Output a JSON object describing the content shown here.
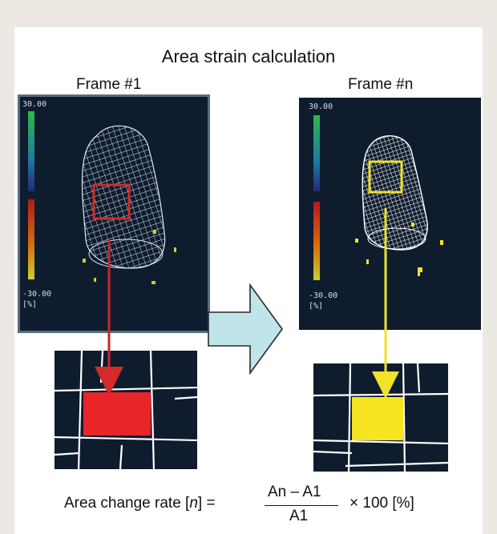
{
  "figure": {
    "title": "Area strain calculation",
    "frame_left_label": "Frame #1",
    "frame_right_label": "Frame #n",
    "scale": {
      "max": "30.00",
      "min": "-30.00",
      "unit": "[%]"
    },
    "formula": {
      "lhs_prefix": "Area change rate [",
      "lhs_var": "n",
      "lhs_suffix": "] =",
      "numerator": "An – A1",
      "denominator": "A1",
      "multiplier": "× 100 [%]"
    },
    "colors": {
      "panel_bg": "#0f1c2e",
      "mesh": "#dfe8f4",
      "region_frame1": "#d42a2a",
      "region_frame_n": "#f2e22a",
      "big_arrow_fill": "#bfe4ea"
    }
  }
}
